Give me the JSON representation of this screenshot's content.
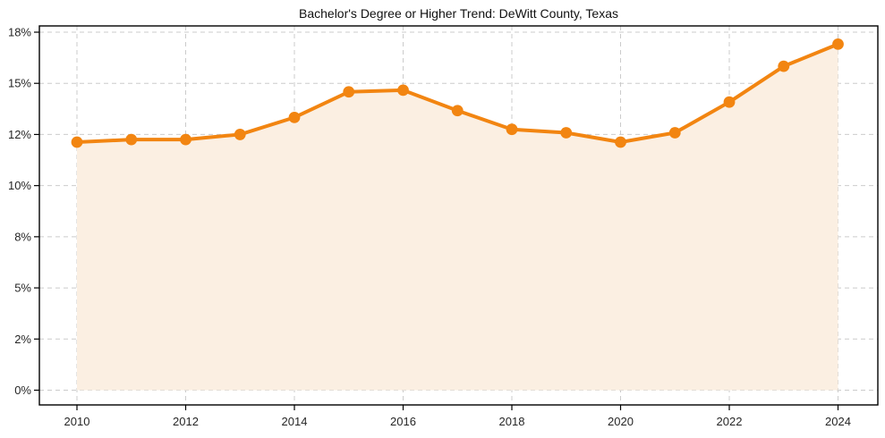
{
  "chart_data": {
    "type": "area",
    "title": "Bachelor's Degree or Higher Trend: DeWitt County, Texas",
    "x": [
      2010,
      2011,
      2012,
      2013,
      2014,
      2015,
      2016,
      2017,
      2018,
      2019,
      2020,
      2021,
      2022,
      2023,
      2024
    ],
    "values": [
      11.7,
      11.8,
      11.8,
      12.0,
      13.0,
      14.5,
      14.6,
      13.4,
      12.3,
      12.1,
      11.7,
      12.1,
      13.9,
      16.0,
      17.3
    ],
    "xlabel": "",
    "ylabel": "",
    "x_tick_years": [
      2010,
      2012,
      2014,
      2016,
      2018,
      2020,
      2022,
      2024
    ],
    "x_tick_labels": [
      "2010",
      "2012",
      "2014",
      "2016",
      "2018",
      "2020",
      "2022",
      "2024"
    ],
    "y_tick_values": [
      0,
      2,
      5,
      8,
      10,
      12,
      15,
      18
    ],
    "y_tick_labels": [
      "0%",
      "2%",
      "5%",
      "8%",
      "10%",
      "12%",
      "15%",
      "18%"
    ],
    "y_axis_note": "y ticks are evenly spaced in pixels (non-linear value scale)",
    "grid": "dashed, on",
    "legend": "none",
    "colors": {
      "line": "#F28511",
      "marker": "#F28511",
      "area_fill": "#FBEFE2",
      "gridline": "#CBCBCB",
      "axis_border": "#000000",
      "tick_label": "#262626",
      "title": "#111111",
      "background": "#FFFFFF"
    }
  }
}
